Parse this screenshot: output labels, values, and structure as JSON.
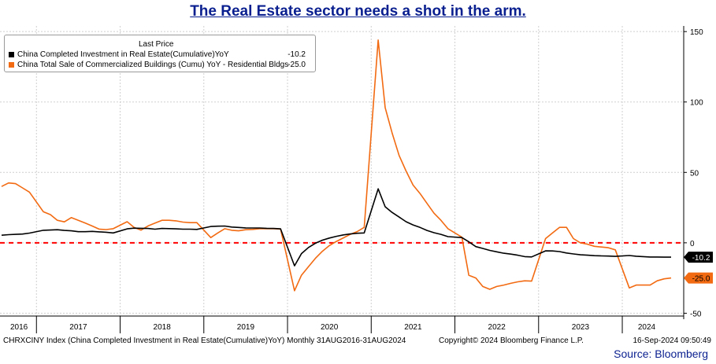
{
  "title": "The Real Estate sector needs a shot in the arm.",
  "legend": {
    "header": "Last Price",
    "items": [
      {
        "label": "China Completed Investment in Real Estate(Cumulative)YoY",
        "value": "-10.2",
        "color": "#000000"
      },
      {
        "label": "China Total Sale of Commercialized Buildings (Cumu) YoY - Residential Bldgs",
        "value": "-25.0",
        "color": "#f26a11"
      }
    ]
  },
  "footer": {
    "index_text": "CHRXCINY Index (China Completed Investment in Real Estate(Cumulative)YoY)  Monthly 31AUG2016-31AUG2024",
    "copyright": "Copyright© 2024 Bloomberg Finance L.P.",
    "timestamp": "16-Sep-2024 09:50:49"
  },
  "source": "Source: Bloomberg",
  "chart_data": {
    "type": "line",
    "x_unit": "month",
    "x_range": [
      "2016-08",
      "2024-08"
    ],
    "x_ticks": [
      "2016",
      "2017",
      "2018",
      "2019",
      "2020",
      "2021",
      "2022",
      "2023",
      "2024"
    ],
    "y_ticks": [
      150,
      100,
      50,
      0,
      -50
    ],
    "ylim": [
      -52,
      154
    ],
    "grid": true,
    "reference_line": {
      "y": 0,
      "color": "#ff0000",
      "style": "dashed"
    },
    "last_value_labels": [
      {
        "value": -10.2,
        "text": "-10.2",
        "bg": "#000000",
        "fg": "#ffffff"
      },
      {
        "value": -25.0,
        "text": "-25.0",
        "bg": "#f26a11",
        "fg": "#000000"
      }
    ],
    "series": [
      {
        "name": "China Completed Investment in Real Estate(Cumulative)YoY",
        "color": "#000000",
        "points": [
          [
            "2016-08",
            5.4
          ],
          [
            "2016-09",
            5.8
          ],
          [
            "2016-10",
            6.0
          ],
          [
            "2016-11",
            6.2
          ],
          [
            "2016-12",
            6.9
          ],
          [
            "2017-02",
            8.9
          ],
          [
            "2017-03",
            9.1
          ],
          [
            "2017-04",
            9.3
          ],
          [
            "2017-05",
            8.8
          ],
          [
            "2017-06",
            8.5
          ],
          [
            "2017-07",
            7.9
          ],
          [
            "2017-08",
            7.9
          ],
          [
            "2017-09",
            8.1
          ],
          [
            "2017-10",
            7.8
          ],
          [
            "2017-11",
            7.5
          ],
          [
            "2017-12",
            7.0
          ],
          [
            "2018-02",
            9.9
          ],
          [
            "2018-03",
            10.4
          ],
          [
            "2018-04",
            10.3
          ],
          [
            "2018-05",
            10.2
          ],
          [
            "2018-06",
            9.7
          ],
          [
            "2018-07",
            10.2
          ],
          [
            "2018-08",
            10.1
          ],
          [
            "2018-09",
            9.9
          ],
          [
            "2018-10",
            9.7
          ],
          [
            "2018-11",
            9.7
          ],
          [
            "2018-12",
            9.5
          ],
          [
            "2019-02",
            11.6
          ],
          [
            "2019-03",
            11.8
          ],
          [
            "2019-04",
            11.9
          ],
          [
            "2019-05",
            11.2
          ],
          [
            "2019-06",
            10.9
          ],
          [
            "2019-07",
            10.6
          ],
          [
            "2019-08",
            10.5
          ],
          [
            "2019-09",
            10.5
          ],
          [
            "2019-10",
            10.3
          ],
          [
            "2019-11",
            10.2
          ],
          [
            "2019-12",
            9.9
          ],
          [
            "2020-02",
            -16.3
          ],
          [
            "2020-03",
            -7.7
          ],
          [
            "2020-04",
            -3.3
          ],
          [
            "2020-05",
            -0.3
          ],
          [
            "2020-06",
            1.9
          ],
          [
            "2020-07",
            3.4
          ],
          [
            "2020-08",
            4.6
          ],
          [
            "2020-09",
            5.6
          ],
          [
            "2020-10",
            6.3
          ],
          [
            "2020-11",
            6.8
          ],
          [
            "2020-12",
            7.0
          ],
          [
            "2021-02",
            38.3
          ],
          [
            "2021-03",
            25.6
          ],
          [
            "2021-04",
            21.6
          ],
          [
            "2021-05",
            18.3
          ],
          [
            "2021-06",
            15.0
          ],
          [
            "2021-07",
            12.7
          ],
          [
            "2021-08",
            10.9
          ],
          [
            "2021-09",
            8.8
          ],
          [
            "2021-10",
            7.2
          ],
          [
            "2021-11",
            6.0
          ],
          [
            "2021-12",
            4.4
          ],
          [
            "2022-02",
            3.7
          ],
          [
            "2022-03",
            0.7
          ],
          [
            "2022-04",
            -2.7
          ],
          [
            "2022-05",
            -4.0
          ],
          [
            "2022-06",
            -5.4
          ],
          [
            "2022-07",
            -6.4
          ],
          [
            "2022-08",
            -7.4
          ],
          [
            "2022-09",
            -8.0
          ],
          [
            "2022-10",
            -8.8
          ],
          [
            "2022-11",
            -9.8
          ],
          [
            "2022-12",
            -10.0
          ],
          [
            "2023-02",
            -5.7
          ],
          [
            "2023-03",
            -5.8
          ],
          [
            "2023-04",
            -6.2
          ],
          [
            "2023-05",
            -7.2
          ],
          [
            "2023-06",
            -7.9
          ],
          [
            "2023-07",
            -8.5
          ],
          [
            "2023-08",
            -8.8
          ],
          [
            "2023-09",
            -9.1
          ],
          [
            "2023-10",
            -9.3
          ],
          [
            "2023-11",
            -9.4
          ],
          [
            "2023-12",
            -9.6
          ],
          [
            "2024-02",
            -9.0
          ],
          [
            "2024-03",
            -9.5
          ],
          [
            "2024-04",
            -9.8
          ],
          [
            "2024-05",
            -10.1
          ],
          [
            "2024-06",
            -10.1
          ],
          [
            "2024-07",
            -10.2
          ],
          [
            "2024-08",
            -10.2
          ]
        ]
      },
      {
        "name": "China Total Sale of Commercialized Buildings (Cumu) YoY - Residential Bldgs",
        "color": "#f26a11",
        "points": [
          [
            "2016-08",
            40.0
          ],
          [
            "2016-09",
            42.5
          ],
          [
            "2016-10",
            42.0
          ],
          [
            "2016-11",
            39.0
          ],
          [
            "2016-12",
            36.0
          ],
          [
            "2017-02",
            22.0
          ],
          [
            "2017-03",
            20.0
          ],
          [
            "2017-04",
            16.0
          ],
          [
            "2017-05",
            14.9
          ],
          [
            "2017-06",
            17.9
          ],
          [
            "2017-07",
            16.0
          ],
          [
            "2017-08",
            14.0
          ],
          [
            "2017-09",
            11.9
          ],
          [
            "2017-10",
            9.7
          ],
          [
            "2017-11",
            9.4
          ],
          [
            "2017-12",
            10.0
          ],
          [
            "2018-02",
            15.0
          ],
          [
            "2018-03",
            11.0
          ],
          [
            "2018-04",
            9.0
          ],
          [
            "2018-05",
            12.0
          ],
          [
            "2018-06",
            14.0
          ],
          [
            "2018-07",
            16.0
          ],
          [
            "2018-08",
            16.0
          ],
          [
            "2018-09",
            15.6
          ],
          [
            "2018-10",
            14.7
          ],
          [
            "2018-11",
            14.3
          ],
          [
            "2018-12",
            14.3
          ],
          [
            "2019-02",
            3.7
          ],
          [
            "2019-03",
            7.0
          ],
          [
            "2019-04",
            10.0
          ],
          [
            "2019-05",
            8.9
          ],
          [
            "2019-06",
            8.5
          ],
          [
            "2019-07",
            9.3
          ],
          [
            "2019-08",
            9.5
          ],
          [
            "2019-09",
            10.0
          ],
          [
            "2019-10",
            10.0
          ],
          [
            "2019-11",
            10.0
          ],
          [
            "2019-12",
            9.8
          ],
          [
            "2020-02",
            -34.0
          ],
          [
            "2020-03",
            -23.0
          ],
          [
            "2020-04",
            -17.0
          ],
          [
            "2020-05",
            -11.0
          ],
          [
            "2020-06",
            -6.0
          ],
          [
            "2020-07",
            -2.0
          ],
          [
            "2020-08",
            1.0
          ],
          [
            "2020-09",
            3.5
          ],
          [
            "2020-10",
            6.0
          ],
          [
            "2020-11",
            8.0
          ],
          [
            "2020-12",
            11.0
          ],
          [
            "2021-02",
            144.0
          ],
          [
            "2021-03",
            96.0
          ],
          [
            "2021-04",
            78.0
          ],
          [
            "2021-05",
            62.0
          ],
          [
            "2021-06",
            51.0
          ],
          [
            "2021-07",
            41.0
          ],
          [
            "2021-08",
            35.0
          ],
          [
            "2021-09",
            28.0
          ],
          [
            "2021-10",
            21.0
          ],
          [
            "2021-11",
            16.0
          ],
          [
            "2021-12",
            10.0
          ],
          [
            "2022-02",
            4.0
          ],
          [
            "2022-03",
            -23.0
          ],
          [
            "2022-04",
            -25.0
          ],
          [
            "2022-05",
            -31.0
          ],
          [
            "2022-06",
            -33.0
          ],
          [
            "2022-07",
            -31.0
          ],
          [
            "2022-08",
            -30.0
          ],
          [
            "2022-09",
            -28.8
          ],
          [
            "2022-10",
            -27.7
          ],
          [
            "2022-11",
            -27.0
          ],
          [
            "2022-12",
            -27.2
          ],
          [
            "2023-02",
            3.0
          ],
          [
            "2023-03",
            7.0
          ],
          [
            "2023-04",
            11.0
          ],
          [
            "2023-05",
            11.0
          ],
          [
            "2023-06",
            3.0
          ],
          [
            "2023-07",
            0.0
          ],
          [
            "2023-08",
            -1.0
          ],
          [
            "2023-09",
            -2.5
          ],
          [
            "2023-10",
            -3.0
          ],
          [
            "2023-11",
            -3.5
          ],
          [
            "2023-12",
            -5.0
          ],
          [
            "2024-02",
            -32.0
          ],
          [
            "2024-03",
            -30.0
          ],
          [
            "2024-04",
            -30.0
          ],
          [
            "2024-05",
            -30.0
          ],
          [
            "2024-06",
            -27.0
          ],
          [
            "2024-07",
            -25.6
          ],
          [
            "2024-08",
            -25.0
          ]
        ]
      }
    ]
  }
}
